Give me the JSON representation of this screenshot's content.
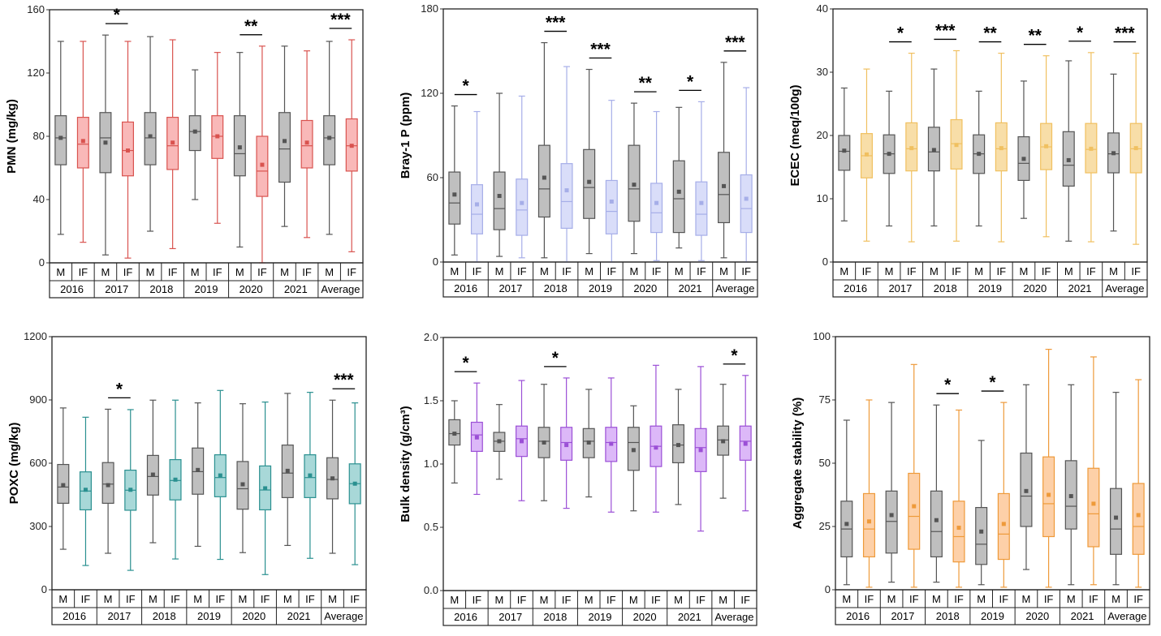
{
  "chart_data": [
    {
      "type": "box",
      "ylabel": "PMN (mg/kg)",
      "ylim": [
        0,
        160
      ],
      "yticks": [
        "0",
        "40",
        "80",
        "120",
        "160"
      ],
      "categories": [
        "2016",
        "2017",
        "2018",
        "2019",
        "2020",
        "2021",
        "Average"
      ],
      "groups": [
        "M",
        "IF"
      ],
      "colors": {
        "M_stroke": "#555555",
        "M_fill": "#bfbfbf",
        "IF_stroke": "#d9534f",
        "IF_fill": "#f9b8b8"
      },
      "box_fields": [
        "min",
        "q1",
        "median",
        "q3",
        "max",
        "mean"
      ],
      "series": [
        {
          "name": "M",
          "values": [
            [
              18,
              62,
              79,
              93,
              140,
              79
            ],
            [
              5,
              57,
              79,
              95,
              144,
              76
            ],
            [
              20,
              62,
              79,
              95,
              143,
              80
            ],
            [
              40,
              71,
              83,
              93,
              122,
              83
            ],
            [
              10,
              55,
              69,
              93,
              133,
              73
            ],
            [
              23,
              51,
              72,
              95,
              137,
              77
            ],
            [
              18,
              62,
              79,
              93,
              140,
              79
            ]
          ]
        },
        {
          "name": "IF",
          "values": [
            [
              13,
              60,
              75,
              92,
              140,
              77
            ],
            [
              3,
              55,
              71,
              89,
              140,
              71
            ],
            [
              9,
              59,
              74,
              92,
              141,
              76
            ],
            [
              25,
              66,
              80,
              93,
              133,
              80
            ],
            [
              0,
              42,
              58,
              80,
              137,
              62
            ],
            [
              16,
              60,
              74,
              90,
              134,
              76
            ],
            [
              7,
              58,
              74,
              91,
              141,
              74
            ]
          ]
        }
      ],
      "significance": [
        "",
        "*",
        "",
        "",
        "**",
        "",
        "***"
      ]
    },
    {
      "type": "box",
      "ylabel": "Bray-1 P (ppm)",
      "ylim": [
        0,
        180
      ],
      "yticks": [
        "0",
        "60",
        "120",
        "180"
      ],
      "categories": [
        "2016",
        "2017",
        "2018",
        "2019",
        "2020",
        "2021",
        "Average"
      ],
      "groups": [
        "M",
        "IF"
      ],
      "colors": {
        "M_stroke": "#555555",
        "M_fill": "#bfbfbf",
        "IF_stroke": "#a6aee8",
        "IF_fill": "#d9ddf9"
      },
      "box_fields": [
        "min",
        "q1",
        "median",
        "q3",
        "max",
        "mean"
      ],
      "series": [
        {
          "name": "M",
          "values": [
            [
              5,
              27,
              42,
              64,
              111,
              48
            ],
            [
              4,
              23,
              38,
              64,
              120,
              47
            ],
            [
              3,
              32,
              52,
              83,
              156,
              60
            ],
            [
              6,
              31,
              53,
              80,
              137,
              57
            ],
            [
              6,
              29,
              52,
              83,
              113,
              55
            ],
            [
              10,
              21,
              45,
              72,
              110,
              50
            ],
            [
              3,
              28,
              48,
              78,
              142,
              54
            ]
          ]
        },
        {
          "name": "IF",
          "values": [
            [
              0,
              20,
              34,
              55,
              107,
              41
            ],
            [
              3,
              19,
              37,
              59,
              118,
              42
            ],
            [
              0,
              24,
              43,
              70,
              139,
              51
            ],
            [
              0,
              20,
              36,
              58,
              115,
              43
            ],
            [
              1,
              21,
              35,
              56,
              107,
              42
            ],
            [
              1,
              19,
              34,
              57,
              114,
              42
            ],
            [
              0,
              21,
              38,
              62,
              124,
              45
            ]
          ]
        }
      ],
      "significance": [
        "*",
        "",
        "***",
        "***",
        "**",
        "*",
        "***"
      ]
    },
    {
      "type": "box",
      "ylabel": "ECEC (meq/100g)",
      "ylim": [
        0,
        40
      ],
      "yticks": [
        "0",
        "10",
        "20",
        "30",
        "40"
      ],
      "categories": [
        "2016",
        "2017",
        "2018",
        "2019",
        "2020",
        "2021",
        "Average"
      ],
      "groups": [
        "M",
        "IF"
      ],
      "colors": {
        "M_stroke": "#555555",
        "M_fill": "#bfbfbf",
        "IF_stroke": "#f0c060",
        "IF_fill": "#f8dea8"
      },
      "box_fields": [
        "min",
        "q1",
        "median",
        "q3",
        "max",
        "mean"
      ],
      "series": [
        {
          "name": "M",
          "values": [
            [
              6.5,
              14.5,
              17.5,
              20,
              27.5,
              17.6
            ],
            [
              5.7,
              14,
              17.1,
              20.1,
              27,
              17.1
            ],
            [
              5.7,
              14.4,
              17.4,
              21.3,
              30.5,
              17.7
            ],
            [
              5.7,
              14,
              17.1,
              20.1,
              27,
              17.1
            ],
            [
              6.9,
              12.9,
              15.6,
              19.8,
              28.6,
              16.3
            ],
            [
              3.3,
              12,
              15.3,
              20.6,
              31.8,
              16.1
            ],
            [
              4.9,
              14.1,
              17.1,
              20.4,
              29.7,
              17.2
            ]
          ]
        },
        {
          "name": "IF",
          "values": [
            [
              3.3,
              13.3,
              16.8,
              20.3,
              30.5,
              17
            ],
            [
              3.2,
              14.4,
              17.9,
              22,
              33,
              18
            ],
            [
              3.3,
              14.7,
              18.7,
              22.5,
              33.4,
              18.5
            ],
            [
              3.2,
              14.4,
              17.9,
              22,
              33,
              18
            ],
            [
              4,
              14.6,
              18.2,
              21.9,
              32.6,
              18.3
            ],
            [
              3.2,
              14.1,
              17.8,
              21.9,
              33.1,
              17.9
            ],
            [
              2.8,
              14.1,
              17.9,
              21.9,
              33,
              18
            ]
          ]
        }
      ],
      "significance": [
        "",
        "*",
        "***",
        "**",
        "**",
        "*",
        "***"
      ]
    },
    {
      "type": "box",
      "ylabel": "POXC (mg/kg)",
      "ylim": [
        0,
        1200
      ],
      "yticks": [
        "0",
        "300",
        "600",
        "900",
        "1200"
      ],
      "categories": [
        "2016",
        "2017",
        "2018",
        "2019",
        "2020",
        "2021",
        "Average"
      ],
      "groups": [
        "M",
        "IF"
      ],
      "colors": {
        "M_stroke": "#555555",
        "M_fill": "#bfbfbf",
        "IF_stroke": "#2a9090",
        "IF_fill": "#a8d8d8"
      },
      "box_fields": [
        "min",
        "q1",
        "median",
        "q3",
        "max",
        "mean"
      ],
      "series": [
        {
          "name": "M",
          "values": [
            [
              192,
              410,
              487,
              594,
              862,
              496
            ],
            [
              173,
              410,
              501,
              603,
              856,
              496
            ],
            [
              223,
              449,
              537,
              637,
              899,
              546
            ],
            [
              206,
              453,
              560,
              672,
              886,
              568
            ],
            [
              176,
              382,
              479,
              608,
              882,
              500
            ],
            [
              210,
              437,
              553,
              686,
              931,
              564
            ],
            [
              173,
              431,
              523,
              626,
              899,
              528
            ]
          ]
        },
        {
          "name": "IF",
          "values": [
            [
              115,
              379,
              468,
              559,
              818,
              474
            ],
            [
              92,
              377,
              472,
              567,
              854,
              474
            ],
            [
              146,
              426,
              518,
              617,
              899,
              522
            ],
            [
              144,
              441,
              532,
              640,
              945,
              542
            ],
            [
              72,
              379,
              473,
              587,
              890,
              481
            ],
            [
              149,
              437,
              532,
              640,
              936,
              542
            ],
            [
              119,
              408,
              503,
              597,
              886,
              503
            ]
          ]
        }
      ],
      "significance": [
        "",
        "*",
        "",
        "",
        "",
        "",
        "***"
      ]
    },
    {
      "type": "box",
      "ylabel": "Bulk density (g/cm³)",
      "ylim": [
        0,
        2
      ],
      "yticks": [
        "0.0",
        "0.5",
        "1.0",
        "1.5",
        "2.0"
      ],
      "categories": [
        "2016",
        "2017",
        "2018",
        "2019",
        "2020",
        "2021",
        "Average"
      ],
      "groups": [
        "M",
        "IF"
      ],
      "colors": {
        "M_stroke": "#555555",
        "M_fill": "#bfbfbf",
        "IF_stroke": "#9b4fd6",
        "IF_fill": "#dcb8f8"
      },
      "box_fields": [
        "min",
        "q1",
        "median",
        "q3",
        "max",
        "mean"
      ],
      "series": [
        {
          "name": "M",
          "values": [
            [
              0.85,
              1.15,
              1.24,
              1.35,
              1.5,
              1.24
            ],
            [
              0.88,
              1.1,
              1.18,
              1.25,
              1.47,
              1.18
            ],
            [
              0.71,
              1.05,
              1.18,
              1.29,
              1.63,
              1.17
            ],
            [
              0.74,
              1.05,
              1.18,
              1.28,
              1.59,
              1.17
            ],
            [
              0.63,
              0.95,
              1.17,
              1.29,
              1.46,
              1.11
            ],
            [
              0.68,
              1.01,
              1.15,
              1.31,
              1.59,
              1.15
            ],
            [
              0.73,
              1.07,
              1.19,
              1.3,
              1.63,
              1.18
            ]
          ]
        },
        {
          "name": "IF",
          "values": [
            [
              0.76,
              1.1,
              1.23,
              1.33,
              1.64,
              1.21
            ],
            [
              0.71,
              1.06,
              1.2,
              1.3,
              1.66,
              1.18
            ],
            [
              0.65,
              1.03,
              1.17,
              1.29,
              1.68,
              1.15
            ],
            [
              0.62,
              1.02,
              1.17,
              1.29,
              1.68,
              1.16
            ],
            [
              0.62,
              0.98,
              1.14,
              1.3,
              1.78,
              1.13
            ],
            [
              0.47,
              0.94,
              1.13,
              1.28,
              1.77,
              1.11
            ],
            [
              0.63,
              1.03,
              1.18,
              1.3,
              1.7,
              1.16
            ]
          ]
        }
      ],
      "significance": [
        "*",
        "",
        "*",
        "",
        "",
        "",
        "*"
      ]
    },
    {
      "type": "box",
      "ylabel": "Aggregate stability (%)",
      "ylim": [
        0,
        100
      ],
      "yticks": [
        "0",
        "25",
        "50",
        "75",
        "100"
      ],
      "categories": [
        "2016",
        "2017",
        "2018",
        "2019",
        "2020",
        "2021",
        "Average"
      ],
      "groups": [
        "M",
        "IF"
      ],
      "colors": {
        "M_stroke": "#555555",
        "M_fill": "#bfbfbf",
        "IF_stroke": "#ee9a3a",
        "IF_fill": "#fdd0a8"
      },
      "box_fields": [
        "min",
        "q1",
        "median",
        "q3",
        "max",
        "mean"
      ],
      "series": [
        {
          "name": "M",
          "values": [
            [
              2,
              13,
              24,
              35,
              67,
              26
            ],
            [
              3,
              14.5,
              27,
              39,
              74,
              29.5
            ],
            [
              3,
              13,
              23,
              39,
              73,
              27.5
            ],
            [
              2,
              10,
              18,
              32.5,
              59,
              23
            ],
            [
              8,
              25,
              37,
              54,
              81,
              39
            ],
            [
              2,
              24,
              33,
              51,
              81,
              37
            ],
            [
              2,
              14,
              24,
              40,
              78,
              28.5
            ]
          ]
        },
        {
          "name": "IF",
          "values": [
            [
              1,
              13,
              24,
              38,
              75,
              27
            ],
            [
              1,
              16,
              29,
              46,
              89,
              33
            ],
            [
              1,
              11,
              21,
              35,
              71,
              24.5
            ],
            [
              1,
              12,
              22,
              38,
              74,
              26
            ],
            [
              1,
              21,
              34,
              52.5,
              95,
              37.5
            ],
            [
              2,
              17,
              30,
              48,
              92,
              34
            ],
            [
              1,
              14,
              25,
              42,
              83,
              29.5
            ]
          ]
        }
      ],
      "significance": [
        "",
        "",
        "*",
        "*",
        "",
        "",
        ""
      ]
    }
  ]
}
